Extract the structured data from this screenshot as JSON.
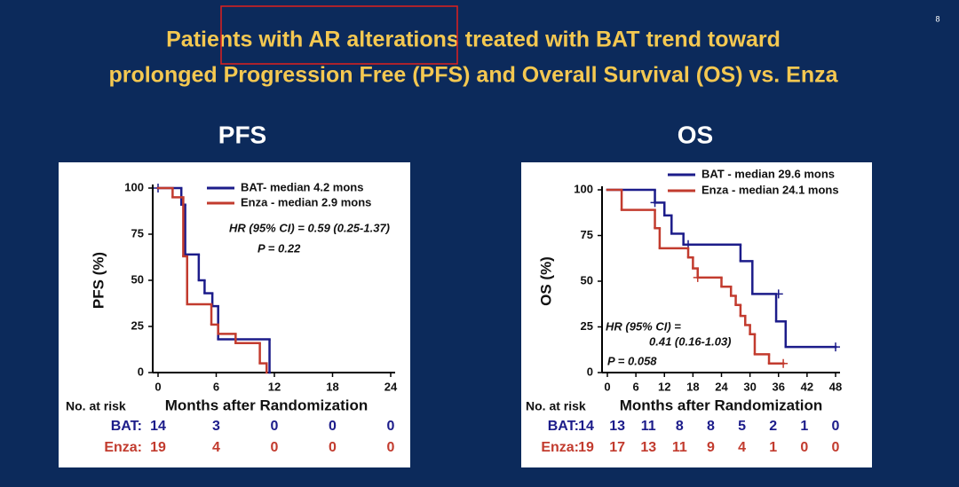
{
  "page_number": "8",
  "title": [
    "Patients with AR alterations treated with BAT trend toward",
    "prolonged Progression Free (PFS) and Overall Survival (OS) vs. Enza"
  ],
  "chart_data": [
    {
      "type": "step",
      "title": "PFS",
      "xlabel": "Months after Randomization",
      "ylabel": "PFS (%)",
      "xlim": [
        0,
        24
      ],
      "ylim": [
        0,
        100
      ],
      "xticks": [
        0,
        6,
        12,
        18,
        24
      ],
      "yticks": [
        0,
        25,
        50,
        75,
        100
      ],
      "series": [
        {
          "name": "BAT- median  4.2 mons",
          "color": "#1c1c8a",
          "x": [
            0,
            2.4,
            2.8,
            4.2,
            4.8,
            5.6,
            6.2,
            11.5
          ],
          "values": [
            100,
            91,
            64,
            50,
            43,
            36,
            18,
            0
          ],
          "censor_x": [
            0
          ],
          "censor_y": [
            100
          ]
        },
        {
          "name": "Enza - median 2.9 mons",
          "color": "#c23b2e",
          "x": [
            0,
            1.5,
            2.6,
            3.0,
            5.5,
            6.2,
            8.0,
            10.5,
            11.2
          ],
          "values": [
            100,
            95,
            63,
            37,
            26,
            21,
            16,
            5,
            0
          ],
          "censor_x": [],
          "censor_y": []
        }
      ],
      "annotations": [
        "HR (95% CI) = 0.59 (0.25-1.37)",
        "P = 0.22"
      ],
      "at_risk": {
        "label": "No. at risk",
        "rows": [
          {
            "name": "BAT:",
            "values": [
              14,
              3,
              0,
              0,
              0
            ]
          },
          {
            "name": "Enza:",
            "values": [
              19,
              4,
              0,
              0,
              0
            ]
          }
        ]
      }
    },
    {
      "type": "step",
      "title": "OS",
      "xlabel": "Months after Randomization",
      "ylabel": "OS (%)",
      "xlim": [
        0,
        48
      ],
      "ylim": [
        0,
        100
      ],
      "xticks": [
        0,
        6,
        12,
        18,
        24,
        30,
        36,
        42,
        48
      ],
      "yticks": [
        0,
        25,
        50,
        75,
        100
      ],
      "series": [
        {
          "name": "BAT - median 29.6 mons",
          "color": "#1c1c8a",
          "x": [
            0,
            10,
            12,
            13.5,
            16,
            28,
            30.5,
            35.5,
            37.5,
            48
          ],
          "values": [
            100,
            93,
            86,
            76,
            70,
            61,
            43,
            28,
            14,
            14
          ],
          "censor_x": [
            10,
            17,
            36,
            48
          ],
          "censor_y": [
            93,
            70,
            43,
            14
          ]
        },
        {
          "name": "Enza - median 24.1 mons",
          "color": "#c23b2e",
          "x": [
            0,
            3,
            10,
            11,
            17,
            18,
            19,
            24,
            26,
            27,
            28,
            29,
            30,
            31,
            34,
            37
          ],
          "values": [
            100,
            89,
            79,
            68,
            63,
            57,
            52,
            47,
            42,
            37,
            31,
            26,
            21,
            10,
            5,
            5
          ],
          "censor_x": [
            19,
            37
          ],
          "censor_y": [
            52,
            5
          ]
        }
      ],
      "annotations": [
        "HR (95% CI) =",
        "0.41 (0.16-1.03)",
        "P = 0.058"
      ],
      "at_risk": {
        "label": "No. at risk",
        "rows": [
          {
            "name": "BAT:",
            "values": [
              14,
              13,
              11,
              8,
              8,
              5,
              2,
              1,
              0
            ]
          },
          {
            "name": "Enza:",
            "values": [
              19,
              17,
              13,
              11,
              9,
              4,
              1,
              0,
              0
            ]
          }
        ]
      }
    }
  ]
}
